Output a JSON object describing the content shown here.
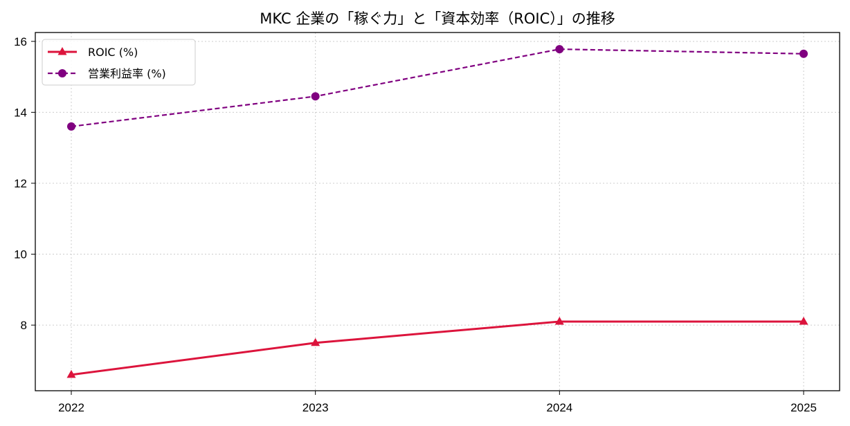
{
  "chart_data": {
    "type": "line",
    "title": "MKC 企業の「稼ぐ力」と「資本効率（ROIC）」の推移",
    "xlabel": "",
    "ylabel": "",
    "x": [
      "2022",
      "2023",
      "2024",
      "2025"
    ],
    "ylim": [
      6.15,
      16.25
    ],
    "yticks": [
      "8",
      "10",
      "12",
      "14",
      "16"
    ],
    "grid": true,
    "legend_position": "top-left",
    "series": [
      {
        "name": "ROIC (%)",
        "values": [
          6.6,
          7.5,
          8.1,
          8.1
        ],
        "color": "#dc143c",
        "line_style": "solid",
        "marker": "triangle"
      },
      {
        "name": "営業利益率 (%)",
        "values": [
          13.6,
          14.45,
          15.78,
          15.65
        ],
        "color": "#800080",
        "line_style": "dashed",
        "marker": "circle"
      }
    ]
  }
}
